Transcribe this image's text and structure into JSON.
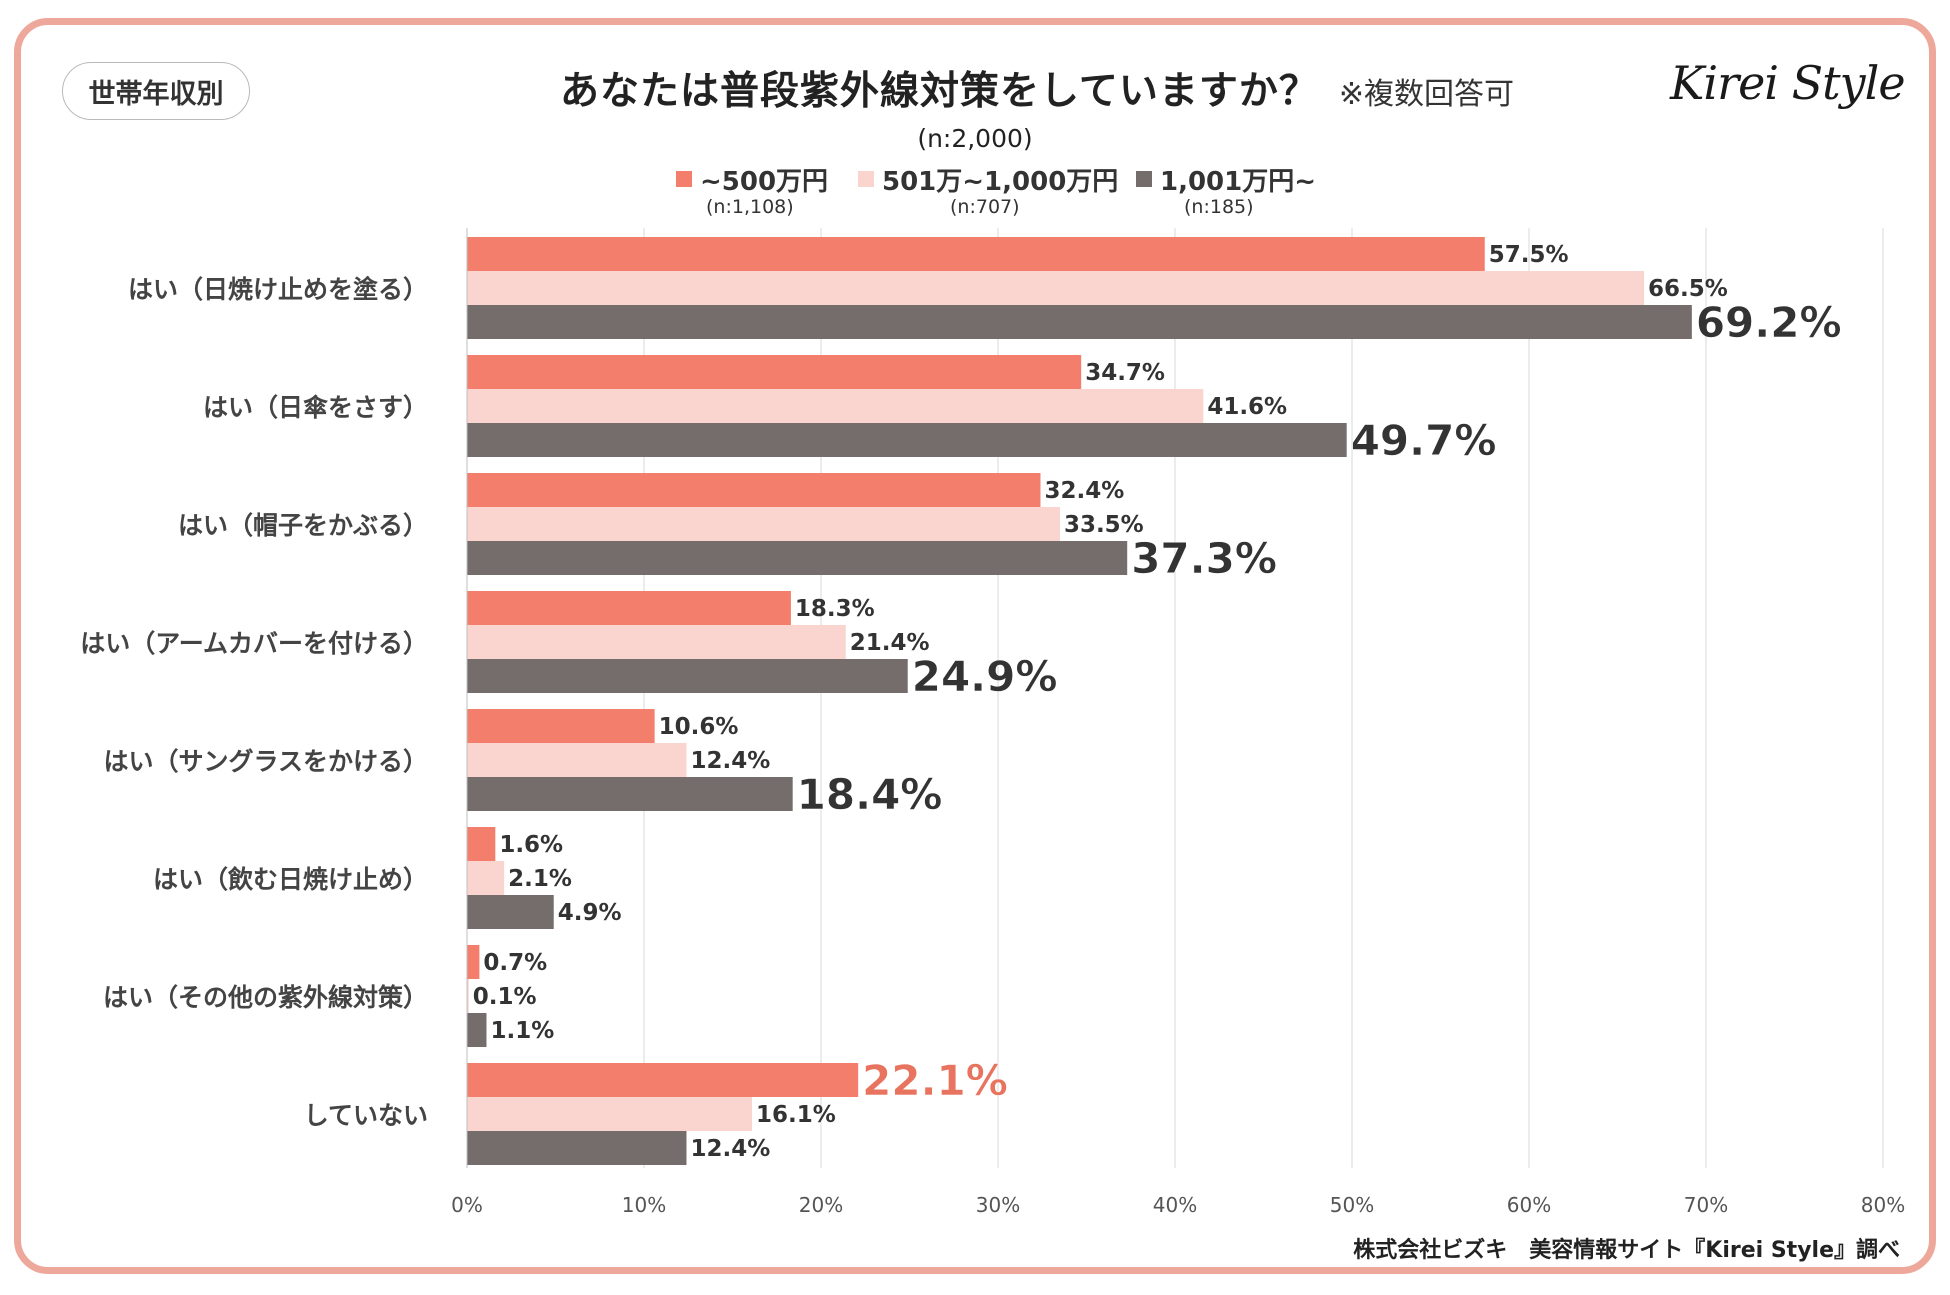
{
  "header": {
    "tag": "世帯年収別",
    "title": "あなたは普段紫外線対策をしていますか？",
    "note": "※複数回答可",
    "logo": "Kirei Style",
    "sample_total": "(n:2,000)"
  },
  "legend": [
    {
      "label": "~500万円",
      "n": "(n:1,108)",
      "color": "#f37e6c"
    },
    {
      "label": "501万~1,000万円",
      "n": "(n:707)",
      "color": "#fad4cf"
    },
    {
      "label": "1,001万円~",
      "n": "(n:185)",
      "color": "#756c6c"
    }
  ],
  "chart_data": {
    "type": "bar",
    "orientation": "horizontal",
    "title": "あなたは普段紫外線対策をしていますか？",
    "categories": [
      "はい（日焼け止めを塗る）",
      "はい（日傘をさす）",
      "はい（帽子をかぶる）",
      "はい（アームカバーを付ける）",
      "はい（サングラスをかける）",
      "はい（飲む日焼け止め）",
      "はい（その他の紫外線対策）",
      "していない"
    ],
    "series": [
      {
        "name": "~500万円",
        "values": [
          57.5,
          34.7,
          32.4,
          18.3,
          10.6,
          1.6,
          0.7,
          22.1
        ]
      },
      {
        "name": "501万~1,000万円",
        "values": [
          66.5,
          41.6,
          33.5,
          21.4,
          12.4,
          2.1,
          0.1,
          16.1
        ]
      },
      {
        "name": "1,001万円~",
        "values": [
          69.2,
          49.7,
          37.3,
          24.9,
          18.4,
          4.9,
          1.1,
          12.4
        ]
      }
    ],
    "highlight_color": "#e8735f",
    "xlim": [
      0,
      80
    ],
    "xticks": [
      "0%",
      "10%",
      "20%",
      "30%",
      "40%",
      "50%",
      "60%",
      "70%",
      "80%"
    ],
    "grid": true
  },
  "footer": "株式会社ビズキ　美容情報サイト『Kirei Style』調べ"
}
